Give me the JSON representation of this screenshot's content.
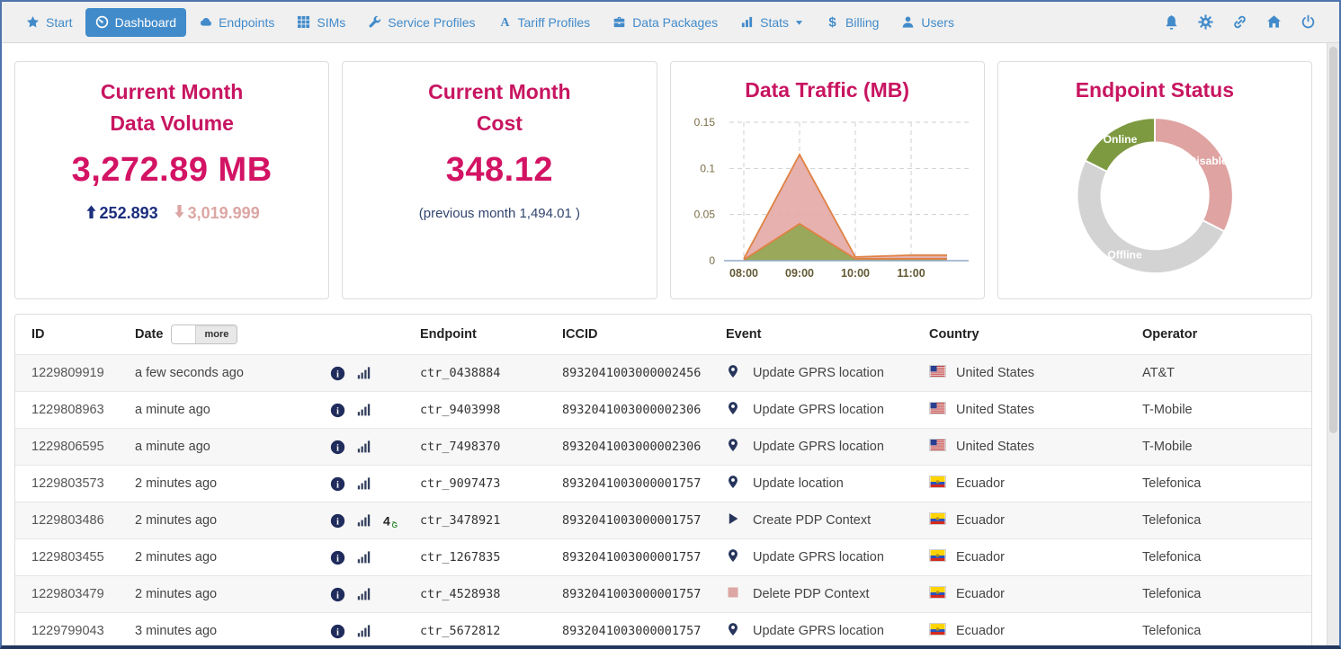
{
  "colors": {
    "accent_blue": "#428bca",
    "title_pink": "#c81561",
    "value_pink": "#d31364",
    "navy": "#1c2e7d",
    "rose": "#dba6a3",
    "olive_green": "#7e9a41",
    "donut_gray": "#d3d3d3",
    "chart_stroke_orange": "#df8244"
  },
  "navbar": {
    "items": [
      {
        "label": "Start",
        "icon": "star-icon",
        "active": false
      },
      {
        "label": "Dashboard",
        "icon": "gauge-icon",
        "active": true
      },
      {
        "label": "Endpoints",
        "icon": "cloud-icon",
        "active": false
      },
      {
        "label": "SIMs",
        "icon": "grid-icon",
        "active": false
      },
      {
        "label": "Service Profiles",
        "icon": "wrench-icon",
        "active": false
      },
      {
        "label": "Tariff Profiles",
        "icon": "letter-a-icon",
        "active": false
      },
      {
        "label": "Data Packages",
        "icon": "briefcase-icon",
        "active": false
      },
      {
        "label": "Stats",
        "icon": "bar-chart-icon",
        "active": false,
        "caret": true
      },
      {
        "label": "Billing",
        "icon": "dollar-icon",
        "active": false
      },
      {
        "label": "Users",
        "icon": "user-icon",
        "active": false
      }
    ],
    "action_icons": [
      "bell-icon",
      "gear-icon",
      "link-icon",
      "home-icon",
      "power-icon"
    ]
  },
  "cards": {
    "data_volume": {
      "title_line1": "Current Month",
      "title_line2": "Data Volume",
      "value": "3,272.89 MB",
      "up_value": "252.893",
      "down_value": "3,019.999"
    },
    "cost": {
      "title_line1": "Current Month",
      "title_line2": "Cost",
      "value": "348.12",
      "subtitle": "(previous month 1,494.01 )"
    },
    "traffic": {
      "title": "Data Traffic (MB)"
    },
    "endpoint_status": {
      "title": "Endpoint Status"
    }
  },
  "chart_data": [
    {
      "id": "data-traffic",
      "type": "area",
      "title": "Data Traffic (MB)",
      "stacked": true,
      "x": [
        "08:00",
        "09:00",
        "10:00",
        "11:00"
      ],
      "y_ticks": [
        0,
        0.05,
        0.1,
        0.15
      ],
      "ylim": [
        0,
        0.15
      ],
      "grid": "dashed",
      "legend": "none",
      "series": [
        {
          "name": "green-series",
          "fill": "#94a351",
          "stroke": "#df8244",
          "values": [
            0.001,
            0.04,
            0.002,
            0.002
          ]
        },
        {
          "name": "pink-series",
          "fill": "#e3a9a5",
          "stroke": "#df8244",
          "values": [
            0.001,
            0.075,
            0.002,
            0.004
          ]
        }
      ]
    },
    {
      "id": "endpoint-status",
      "type": "pie",
      "title": "Endpoint Status",
      "donut": true,
      "start_angle_deg": 0,
      "label_color": "#ffffff",
      "slices": [
        {
          "label": "Disabled",
          "value": 32.5,
          "color": "#dfa3a2"
        },
        {
          "label": "Offline",
          "value": 50,
          "color": "#d3d3d3"
        },
        {
          "label": "Online",
          "value": 17.5,
          "color": "#7e9a41"
        }
      ]
    }
  ],
  "table": {
    "headers": [
      "ID",
      "Date",
      "Endpoint",
      "ICCID",
      "Event",
      "Country",
      "Operator"
    ],
    "date_toggle_label": "more",
    "rows": [
      {
        "id": "1229809919",
        "date": "a few seconds ago",
        "row_icons": [
          "info-icon",
          "signal-icon"
        ],
        "endpoint": "ctr_0438884",
        "iccid": "8932041003000002456",
        "event_icon": "location-pin-icon",
        "event": "Update GPRS location",
        "country_flag": "flag-us-icon",
        "country": "United States",
        "operator": "AT&T"
      },
      {
        "id": "1229808963",
        "date": "a minute ago",
        "row_icons": [
          "info-icon",
          "signal-icon"
        ],
        "endpoint": "ctr_9403998",
        "iccid": "8932041003000002306",
        "event_icon": "location-pin-icon",
        "event": "Update GPRS location",
        "country_flag": "flag-us-icon",
        "country": "United States",
        "operator": "T-Mobile"
      },
      {
        "id": "1229806595",
        "date": "a minute ago",
        "row_icons": [
          "info-icon",
          "signal-icon"
        ],
        "endpoint": "ctr_7498370",
        "iccid": "8932041003000002306",
        "event_icon": "location-pin-icon",
        "event": "Update GPRS location",
        "country_flag": "flag-us-icon",
        "country": "United States",
        "operator": "T-Mobile"
      },
      {
        "id": "1229803573",
        "date": "2 minutes ago",
        "row_icons": [
          "info-icon",
          "signal-icon"
        ],
        "endpoint": "ctr_9097473",
        "iccid": "8932041003000001757",
        "event_icon": "location-pin-icon",
        "event": "Update location",
        "country_flag": "flag-ec-icon",
        "country": "Ecuador",
        "operator": "Telefonica"
      },
      {
        "id": "1229803486",
        "date": "2 minutes ago",
        "row_icons": [
          "info-icon",
          "signal-icon",
          "badge-4g-icon"
        ],
        "endpoint": "ctr_3478921",
        "iccid": "8932041003000001757",
        "event_icon": "play-icon",
        "event": "Create PDP Context",
        "country_flag": "flag-ec-icon",
        "country": "Ecuador",
        "operator": "Telefonica"
      },
      {
        "id": "1229803455",
        "date": "2 minutes ago",
        "row_icons": [
          "info-icon",
          "signal-icon"
        ],
        "endpoint": "ctr_1267835",
        "iccid": "8932041003000001757",
        "event_icon": "location-pin-icon",
        "event": "Update GPRS location",
        "country_flag": "flag-ec-icon",
        "country": "Ecuador",
        "operator": "Telefonica"
      },
      {
        "id": "1229803479",
        "date": "2 minutes ago",
        "row_icons": [
          "info-icon",
          "signal-icon"
        ],
        "endpoint": "ctr_4528938",
        "iccid": "8932041003000001757",
        "event_icon": "square-icon",
        "event": "Delete PDP Context",
        "country_flag": "flag-ec-icon",
        "country": "Ecuador",
        "operator": "Telefonica"
      },
      {
        "id": "1229799043",
        "date": "3 minutes ago",
        "row_icons": [
          "info-icon",
          "signal-icon"
        ],
        "endpoint": "ctr_5672812",
        "iccid": "8932041003000001757",
        "event_icon": "location-pin-icon",
        "event": "Update GPRS location",
        "country_flag": "flag-ec-icon",
        "country": "Ecuador",
        "operator": "Telefonica"
      }
    ]
  }
}
